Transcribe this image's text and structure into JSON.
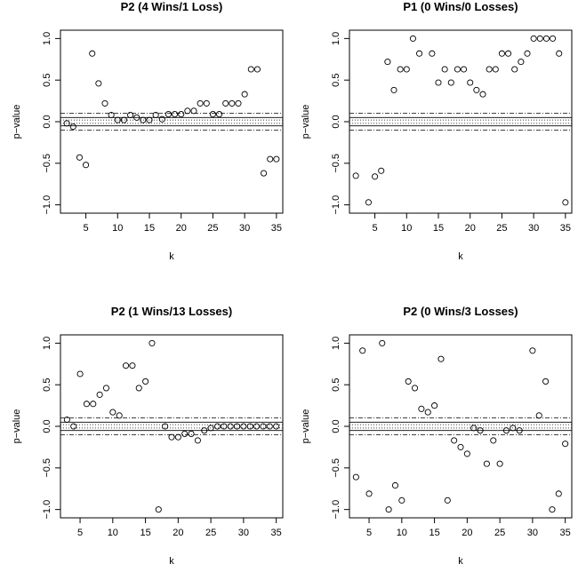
{
  "chart_data": [
    {
      "type": "scatter",
      "title": "P2 (4 Wins/1 Loss)",
      "xlabel": "k",
      "ylabel": "p−value",
      "xlim": [
        1,
        36
      ],
      "ylim": [
        -1.1,
        1.1
      ],
      "x_ticks": [
        "5",
        "10",
        "15",
        "20",
        "25",
        "30",
        "35"
      ],
      "y_ticks": [
        "−1.0",
        "−0.5",
        "0.0",
        "0.5",
        "1.0"
      ],
      "reference_lines": {
        "solid": [
          0.05,
          -0.05
        ],
        "dotted": [
          0.02,
          -0.02
        ],
        "dashdot": [
          0.1,
          -0.1
        ]
      },
      "grid": false,
      "legend": "none",
      "x": [
        2,
        3,
        4,
        5,
        6,
        7,
        8,
        9,
        10,
        11,
        12,
        13,
        14,
        15,
        16,
        17,
        18,
        19,
        20,
        21,
        22,
        23,
        24,
        25,
        26,
        27,
        28,
        29,
        30,
        31,
        32,
        33,
        34,
        35
      ],
      "y": [
        -0.02,
        -0.06,
        -0.43,
        -0.52,
        0.82,
        0.46,
        0.22,
        0.08,
        0.02,
        0.02,
        0.08,
        0.05,
        0.02,
        0.02,
        0.08,
        0.03,
        0.09,
        0.09,
        0.09,
        0.13,
        0.13,
        0.22,
        0.22,
        0.09,
        0.09,
        0.22,
        0.22,
        0.22,
        0.33,
        0.63,
        0.63,
        -0.62,
        -0.45,
        -0.45
      ]
    },
    {
      "type": "scatter",
      "title": "P1 (0 Wins/0 Losses)",
      "xlabel": "k",
      "ylabel": "p−value",
      "xlim": [
        1,
        36
      ],
      "ylim": [
        -1.1,
        1.1
      ],
      "x_ticks": [
        "5",
        "10",
        "15",
        "20",
        "25",
        "30",
        "35"
      ],
      "y_ticks": [
        "−1.0",
        "−0.5",
        "0.0",
        "0.5",
        "1.0"
      ],
      "reference_lines": {
        "solid": [
          0.05,
          -0.05
        ],
        "dotted": [
          0.02,
          -0.02
        ],
        "dashdot": [
          0.1,
          -0.1
        ]
      },
      "grid": false,
      "legend": "none",
      "x": [
        2,
        4,
        5,
        6,
        7,
        8,
        9,
        10,
        11,
        12,
        14,
        15,
        16,
        17,
        18,
        19,
        20,
        21,
        22,
        23,
        24,
        25,
        26,
        27,
        28,
        29,
        30,
        31,
        32,
        33,
        34,
        35
      ],
      "y": [
        -0.65,
        -0.97,
        -0.66,
        -0.59,
        0.72,
        0.38,
        0.63,
        0.63,
        1.0,
        0.82,
        0.82,
        0.47,
        0.63,
        0.47,
        0.63,
        0.63,
        0.47,
        0.38,
        0.33,
        0.63,
        0.63,
        0.82,
        0.82,
        0.63,
        0.72,
        0.82,
        1.0,
        1.0,
        1.0,
        1.0,
        0.82,
        -0.97
      ]
    },
    {
      "type": "scatter",
      "title": "P2 (1 Wins/13 Losses)",
      "xlabel": "k",
      "ylabel": "p−value",
      "xlim": [
        2,
        36
      ],
      "ylim": [
        -1.1,
        1.1
      ],
      "x_ticks": [
        "5",
        "10",
        "15",
        "20",
        "25",
        "30",
        "35"
      ],
      "y_ticks": [
        "−1.0",
        "−0.5",
        "0.0",
        "0.5",
        "1.0"
      ],
      "reference_lines": {
        "solid": [
          0.05,
          -0.05
        ],
        "dotted": [
          0.02,
          -0.02
        ],
        "dashdot": [
          0.1,
          -0.1
        ]
      },
      "grid": false,
      "legend": "none",
      "x": [
        3,
        4,
        5,
        6,
        7,
        8,
        9,
        10,
        11,
        12,
        13,
        14,
        15,
        16,
        17,
        18,
        19,
        20,
        21,
        22,
        23,
        24,
        25,
        26,
        27,
        28,
        29,
        30,
        31,
        32,
        33,
        34,
        35
      ],
      "y": [
        0.08,
        0.0,
        0.63,
        0.27,
        0.27,
        0.38,
        0.46,
        0.17,
        0.13,
        0.73,
        0.73,
        0.46,
        0.54,
        1.0,
        -1.0,
        0.0,
        -0.13,
        -0.13,
        -0.09,
        -0.09,
        -0.17,
        -0.05,
        -0.02,
        0.0,
        0.0,
        0.0,
        0.0,
        0.0,
        0.0,
        0.0,
        0.0,
        0.0,
        0.0
      ]
    },
    {
      "type": "scatter",
      "title": "P2 (0 Wins/3 Losses)",
      "xlabel": "k",
      "ylabel": "p−value",
      "xlim": [
        2,
        36
      ],
      "ylim": [
        -1.1,
        1.1
      ],
      "x_ticks": [
        "5",
        "10",
        "15",
        "20",
        "25",
        "30",
        "35"
      ],
      "y_ticks": [
        "−1.0",
        "−0.5",
        "0.0",
        "0.5",
        "1.0"
      ],
      "reference_lines": {
        "solid": [
          0.05,
          -0.05
        ],
        "dotted": [
          0.02,
          -0.02
        ],
        "dashdot": [
          0.1,
          -0.1
        ]
      },
      "grid": false,
      "legend": "none",
      "x": [
        3,
        4,
        5,
        7,
        8,
        9,
        10,
        11,
        12,
        13,
        14,
        15,
        16,
        17,
        18,
        19,
        20,
        21,
        22,
        23,
        24,
        25,
        26,
        27,
        28,
        30,
        31,
        32,
        33,
        34,
        35
      ],
      "y": [
        -0.61,
        0.91,
        -0.81,
        1.0,
        -1.0,
        -0.71,
        -0.89,
        0.54,
        0.46,
        0.21,
        0.17,
        0.25,
        0.81,
        -0.89,
        -0.17,
        -0.25,
        -0.33,
        -0.02,
        -0.05,
        -0.45,
        -0.17,
        -0.45,
        -0.05,
        -0.02,
        -0.05,
        0.91,
        0.13,
        0.54,
        -1.0,
        -0.81,
        -0.21
      ]
    }
  ]
}
